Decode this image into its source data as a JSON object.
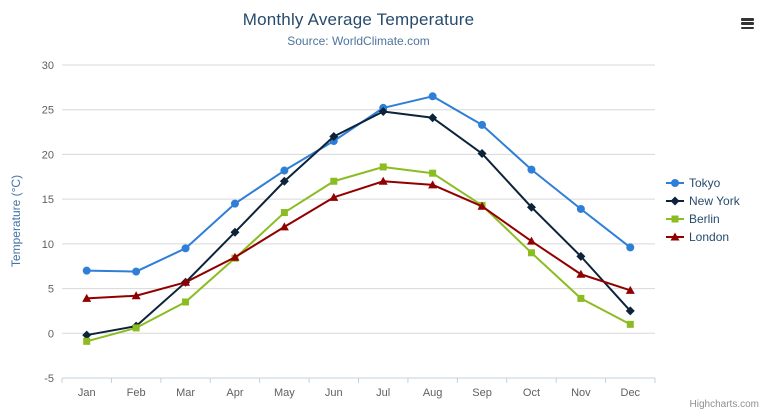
{
  "chart": {
    "title": "Monthly Average Temperature",
    "subtitle": "Source: WorldClimate.com",
    "credits": "Highcharts.com"
  },
  "icons": {
    "export_menu": "hamburger-menu-icon"
  },
  "colors": {
    "title": "#274b6d",
    "subtitle": "#4d759e",
    "axis_title": "#4572a7",
    "axis_labels": "#606060",
    "gridline": "#d8d8d8",
    "axis_line": "#c0d0e0",
    "legend_text": "#274b6d",
    "credits_text": "#909090"
  },
  "chart_data": {
    "type": "line",
    "title": "Monthly Average Temperature",
    "subtitle": "Source: WorldClimate.com",
    "xlabel": "",
    "ylabel": "Temperature (°C)",
    "ylim": [
      -5,
      30
    ],
    "ytick_interval": 5,
    "grid": true,
    "legend_position": "right",
    "categories": [
      "Jan",
      "Feb",
      "Mar",
      "Apr",
      "May",
      "Jun",
      "Jul",
      "Aug",
      "Sep",
      "Oct",
      "Nov",
      "Dec"
    ],
    "series": [
      {
        "name": "Tokyo",
        "color": "#2f7ed8",
        "marker": "circle",
        "values": [
          7.0,
          6.9,
          9.5,
          14.5,
          18.2,
          21.5,
          25.2,
          26.5,
          23.3,
          18.3,
          13.9,
          9.6
        ]
      },
      {
        "name": "New York",
        "color": "#0d233a",
        "marker": "diamond",
        "values": [
          -0.2,
          0.8,
          5.7,
          11.3,
          17.0,
          22.0,
          24.8,
          24.1,
          20.1,
          14.1,
          8.6,
          2.5
        ]
      },
      {
        "name": "Berlin",
        "color": "#8bbc21",
        "marker": "square",
        "values": [
          -0.9,
          0.6,
          3.5,
          8.4,
          13.5,
          17.0,
          18.6,
          17.9,
          14.3,
          9.0,
          3.9,
          1.0
        ]
      },
      {
        "name": "London",
        "color": "#910000",
        "marker": "triangle",
        "values": [
          3.9,
          4.2,
          5.7,
          8.5,
          11.9,
          15.2,
          17.0,
          16.6,
          14.2,
          10.3,
          6.6,
          4.8
        ]
      }
    ]
  }
}
